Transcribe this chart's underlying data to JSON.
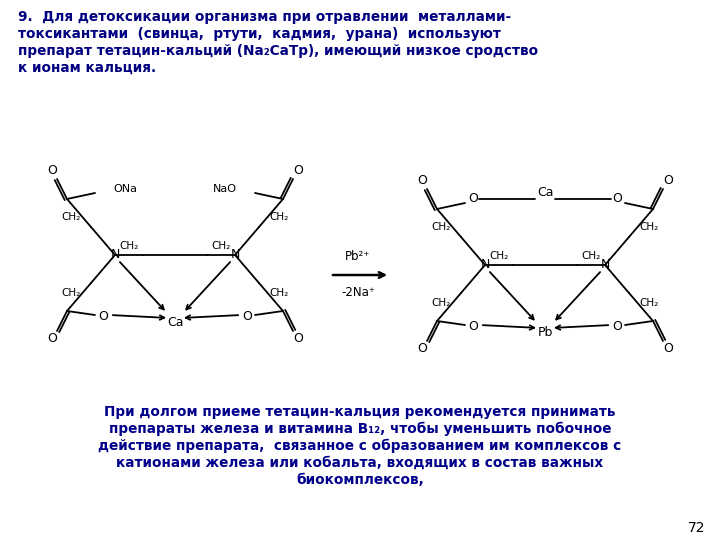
{
  "bg_color": "#ffffff",
  "title_color": "#000080",
  "bottom_text_color": "#00008B",
  "black": "#000000",
  "page_number": "72",
  "title_lines": [
    "9.  Для детоксикации организма при отравлении  металлами-",
    "токсикантами  (свинца,  ртути,  кадмия,  урана)  используют",
    "препарат тетацин-кальций (Na₂CaTp), имеющий низкое сродство",
    "к ионам кальция."
  ],
  "bottom_text_lines": [
    "При долгом приеме тетацин-кальция рекомендуется принимать",
    "препараты железа и витамина В₁₂, чтобы уменьшить побочное",
    "действие препарата,  связанное с образованием им комплексов с",
    "катионами железа или кобальта, входящих в состав важных",
    "биокомплексов,"
  ]
}
